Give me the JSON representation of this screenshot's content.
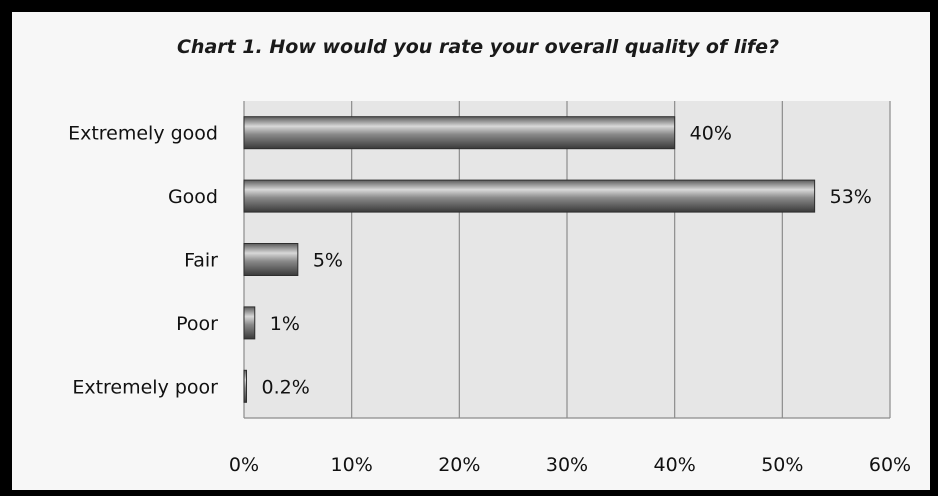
{
  "chart_data": {
    "type": "bar",
    "orientation": "horizontal",
    "title": "Chart 1. How would you rate your overall quality of life?",
    "categories": [
      "Extremely good",
      "Good",
      "Fair",
      "Poor",
      "Extremely poor"
    ],
    "values": [
      40,
      53,
      5,
      1,
      0.2
    ],
    "value_labels": [
      "40%",
      "53%",
      "5%",
      "1%",
      "0.2%"
    ],
    "xlim": [
      0,
      60
    ],
    "x_ticks": [
      0,
      10,
      20,
      30,
      40,
      50,
      60
    ],
    "x_tick_labels": [
      "0%",
      "10%",
      "20%",
      "30%",
      "40%",
      "50%",
      "60%"
    ],
    "grid": true,
    "legend": "none",
    "colors": {
      "bar_dark": "#3a3a3a",
      "bar_mid": "#8a8a8a",
      "bar_light": "#dcdcdc",
      "plot_bg": "#e6e6e6",
      "grid": "#8c8c8c"
    }
  }
}
